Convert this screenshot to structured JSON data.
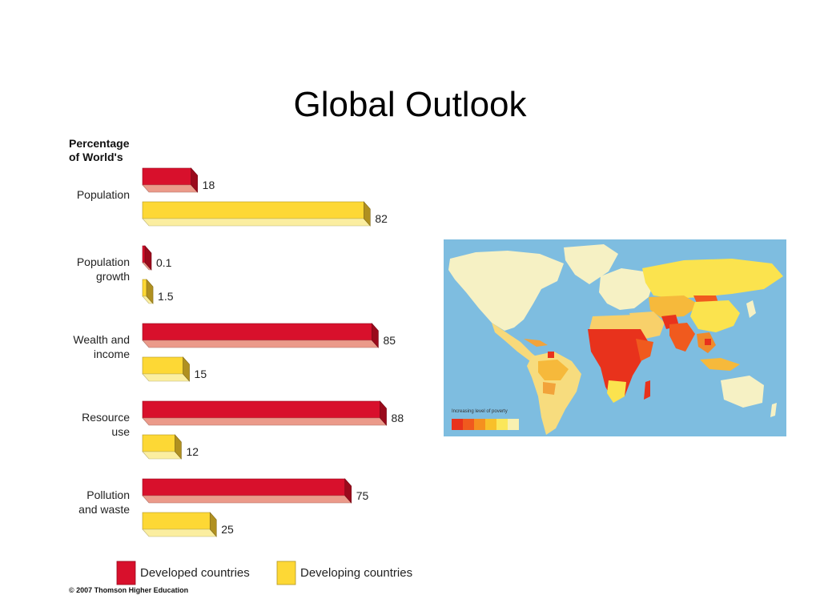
{
  "slide": {
    "title": "Global Outlook"
  },
  "chart_data": {
    "type": "bar",
    "orientation": "horizontal",
    "title": "Percentage of World's",
    "title_lines": [
      "Percentage",
      "of World's"
    ],
    "categories": [
      "Population",
      "Population growth",
      "Wealth and income",
      "Resource use",
      "Pollution and waste"
    ],
    "category_lines": [
      [
        "Population"
      ],
      [
        "Population",
        "growth"
      ],
      [
        "Wealth and",
        "income"
      ],
      [
        "Resource",
        "use"
      ],
      [
        "Pollution",
        "and waste"
      ]
    ],
    "series": [
      {
        "name": "Developed countries",
        "values": [
          18,
          0.1,
          85,
          88,
          75
        ],
        "labels": [
          "18",
          "0.1",
          "85",
          "88",
          "75"
        ],
        "color": "#d8102c",
        "side_color": "#9a0a1c",
        "base_color": "#eb9a8a"
      },
      {
        "name": "Developing countries",
        "values": [
          82,
          1.5,
          15,
          12,
          25
        ],
        "labels": [
          "82",
          "1.5",
          "15",
          "12",
          "25"
        ],
        "color": "#fdd835",
        "side_color": "#b09020",
        "base_color": "#fbeea0"
      }
    ],
    "xlim": [
      0,
      100
    ],
    "grid": false,
    "legend": "bottom",
    "source": "© 2007 Thomson Higher Education"
  },
  "map": {
    "legend_label": "Increasing level of poverty",
    "scale_colors": [
      "#e8321c",
      "#f05a1e",
      "#f5901f",
      "#f8c02a",
      "#fbe75a",
      "#f8f0b0"
    ],
    "ocean_color": "#7ebde0"
  }
}
